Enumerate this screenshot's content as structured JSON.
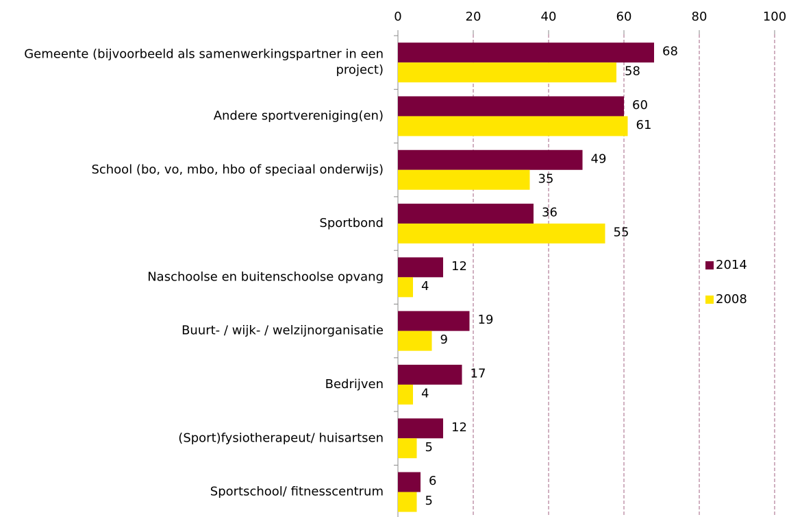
{
  "chart_data": {
    "type": "bar",
    "orientation": "horizontal",
    "categories": [
      "Gemeente (bijvoorbeeld als samenwerkingspartner in een project)",
      "Andere sportvereniging(en)",
      "School (bo, vo, mbo, hbo of speciaal onderwijs)",
      "Sportbond",
      "Naschoolse en buitenschoolse opvang",
      "Buurt- / wijk- / welzijnorganisatie",
      "Bedrijven",
      "(Sport)fysiotherapeut/ huisartsen",
      "Sportschool/ fitnesscentrum"
    ],
    "series": [
      {
        "name": "2014",
        "color": "#7a003c",
        "values": [
          68,
          60,
          49,
          36,
          12,
          19,
          17,
          12,
          6
        ]
      },
      {
        "name": "2008",
        "color": "#ffe600",
        "values": [
          58,
          61,
          35,
          55,
          4,
          9,
          4,
          5,
          5
        ]
      }
    ],
    "xlim": [
      0,
      100
    ],
    "xticks": [
      0,
      20,
      40,
      60,
      80,
      100
    ],
    "grid": true,
    "legend": "right"
  }
}
